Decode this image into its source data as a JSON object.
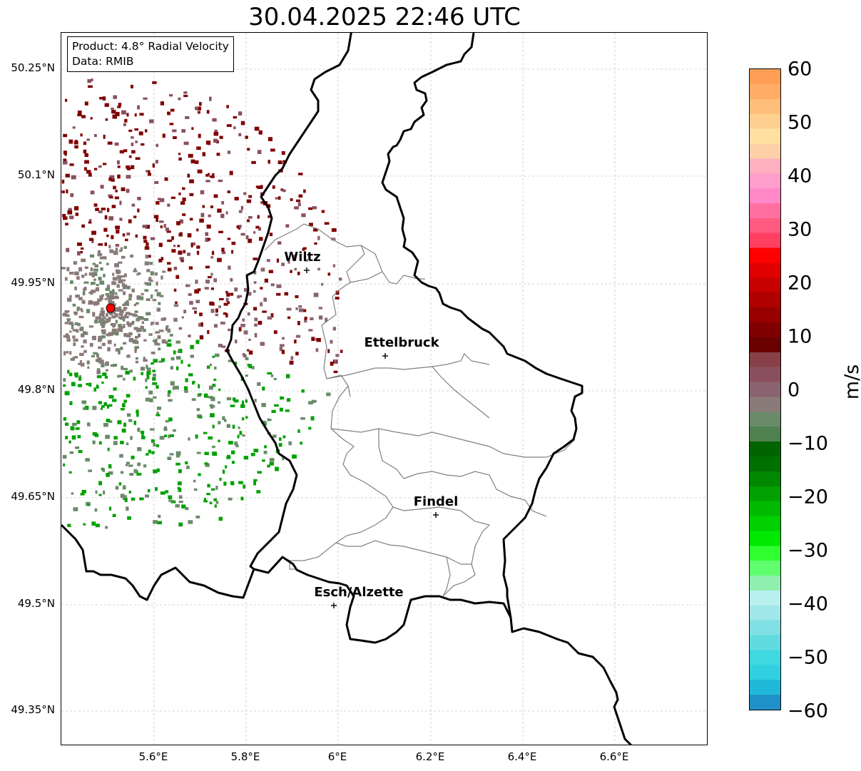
{
  "title": "30.04.2025 22:46 UTC",
  "info_box": {
    "product": "Product: 4.8° Radial Velocity",
    "data": "Data: RMIB"
  },
  "lat_ticks": [
    "50.25°N",
    "50.1°N",
    "49.95°N",
    "49.8°N",
    "49.65°N",
    "49.5°N",
    "49.35°N"
  ],
  "lon_ticks": [
    "5.6°E",
    "5.8°E",
    "6°E",
    "6.2°E",
    "6.4°E",
    "6.6°E"
  ],
  "cities": [
    {
      "name": "Wiltz"
    },
    {
      "name": "Ettelbruck"
    },
    {
      "name": "Findel"
    },
    {
      "name": "Esch/Alzette"
    }
  ],
  "colorbar": {
    "unit": "m/s",
    "ticks": [
      "60",
      "50",
      "40",
      "30",
      "20",
      "10",
      "0",
      "−10",
      "−20",
      "−30",
      "−40",
      "−50",
      "−60"
    ],
    "range": [
      -60,
      60
    ]
  },
  "colors": {
    "border": "#000000",
    "canton_lines": "#808080",
    "radar_site": "#ff0000"
  }
}
